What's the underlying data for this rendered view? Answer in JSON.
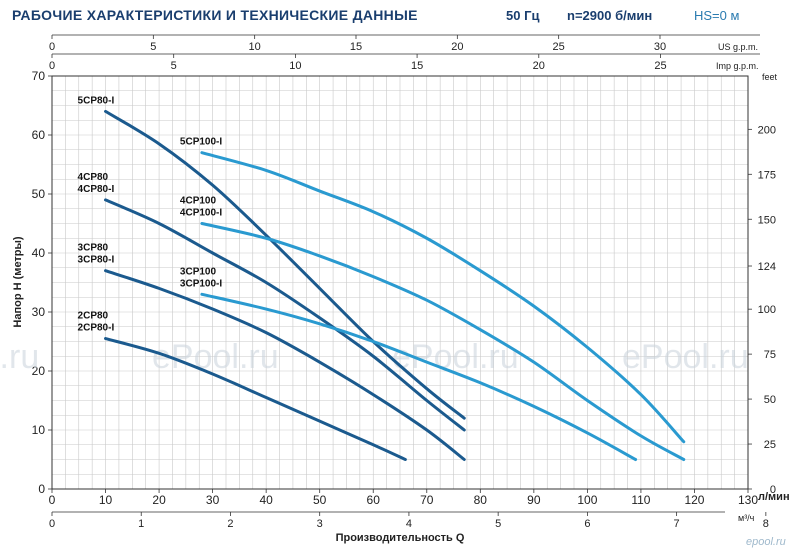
{
  "header": {
    "title": "РАБОЧИЕ ХАРАКТЕРИСТИКИ И ТЕХНИЧЕСКИЕ ДАННЫЕ",
    "frequency": "50 Гц",
    "speed": "n=2900 б/мин",
    "hs": "HS=0 м"
  },
  "watermark": {
    "texts": [
      "l.ru",
      "ePool.ru",
      "ePool.ru",
      "ePool.ru"
    ],
    "logo": "epool.ru"
  },
  "chart_data": {
    "type": "line",
    "title": "",
    "xlabel": "Производительность Q",
    "ylabel": "Напор Н (метры)",
    "x_unit": "л/мин",
    "xlim": [
      0,
      130
    ],
    "ylim": [
      0,
      70
    ],
    "x_ticks": [
      0,
      10,
      20,
      30,
      40,
      50,
      60,
      70,
      80,
      90,
      100,
      110,
      120,
      130
    ],
    "y_ticks": [
      0,
      10,
      20,
      30,
      40,
      50,
      60,
      70
    ],
    "grid": true,
    "secondary_axes": {
      "us_gpm": {
        "label": "US g.p.m.",
        "ticks": [
          0,
          5,
          10,
          15,
          20,
          25,
          30
        ]
      },
      "imp_gpm": {
        "label": "Imp g.p.m.",
        "ticks": [
          0,
          5,
          10,
          15,
          20,
          25
        ]
      },
      "feet": {
        "label": "feet",
        "ticks": [
          0,
          25,
          50,
          75,
          100,
          124,
          150,
          175,
          200
        ]
      },
      "m3h": {
        "label": "м³/ч",
        "ticks": [
          0,
          1,
          2,
          3,
          4,
          5,
          6,
          7,
          8
        ]
      }
    },
    "series": [
      {
        "name": "5CP80-I",
        "label_lines": [
          "5CP80-I"
        ],
        "color": "#1b5a8e",
        "points": [
          [
            10,
            64
          ],
          [
            20,
            58.5
          ],
          [
            30,
            51.5
          ],
          [
            40,
            43
          ],
          [
            50,
            34
          ],
          [
            60,
            25
          ],
          [
            70,
            17
          ],
          [
            77,
            12
          ]
        ]
      },
      {
        "name": "4CP80 / 4CP80-I",
        "label_lines": [
          "4CP80",
          "4CP80-I"
        ],
        "color": "#1b5a8e",
        "points": [
          [
            10,
            49
          ],
          [
            20,
            45
          ],
          [
            30,
            40
          ],
          [
            40,
            35
          ],
          [
            50,
            29
          ],
          [
            60,
            22.5
          ],
          [
            70,
            15
          ],
          [
            77,
            10
          ]
        ]
      },
      {
        "name": "3CP80 / 3CP80-I",
        "label_lines": [
          "3CP80",
          "3CP80-I"
        ],
        "color": "#1b5a8e",
        "points": [
          [
            10,
            37
          ],
          [
            20,
            34
          ],
          [
            30,
            30.5
          ],
          [
            40,
            26.5
          ],
          [
            50,
            21.5
          ],
          [
            60,
            16
          ],
          [
            70,
            10
          ],
          [
            77,
            5
          ]
        ]
      },
      {
        "name": "2CP80 / 2CP80-I",
        "label_lines": [
          "2CP80",
          "2CP80-I"
        ],
        "color": "#1b5a8e",
        "points": [
          [
            10,
            25.5
          ],
          [
            20,
            23
          ],
          [
            30,
            19.5
          ],
          [
            40,
            15.5
          ],
          [
            50,
            11.5
          ],
          [
            60,
            7.5
          ],
          [
            66,
            5
          ]
        ]
      },
      {
        "name": "5CP100-I",
        "label_lines": [
          "5CP100-I"
        ],
        "color": "#2a9ad0",
        "points": [
          [
            28,
            57
          ],
          [
            40,
            54
          ],
          [
            50,
            50.5
          ],
          [
            60,
            47
          ],
          [
            70,
            42.5
          ],
          [
            80,
            37
          ],
          [
            90,
            31
          ],
          [
            100,
            24
          ],
          [
            110,
            16
          ],
          [
            118,
            8
          ]
        ]
      },
      {
        "name": "4CP100 / 4CP100-I",
        "label_lines": [
          "4CP100",
          "4CP100-I"
        ],
        "color": "#2a9ad0",
        "points": [
          [
            28,
            45
          ],
          [
            40,
            42.5
          ],
          [
            50,
            39.5
          ],
          [
            60,
            36
          ],
          [
            70,
            32
          ],
          [
            80,
            27
          ],
          [
            90,
            21.5
          ],
          [
            100,
            15
          ],
          [
            110,
            9
          ],
          [
            118,
            5
          ]
        ]
      },
      {
        "name": "3CP100 / 3CP100-I",
        "label_lines": [
          "3CP100",
          "3CP100-I"
        ],
        "color": "#2a9ad0",
        "points": [
          [
            28,
            33
          ],
          [
            40,
            30.5
          ],
          [
            50,
            28
          ],
          [
            60,
            25
          ],
          [
            70,
            21.5
          ],
          [
            80,
            18
          ],
          [
            90,
            14
          ],
          [
            100,
            9.5
          ],
          [
            109,
            5
          ]
        ]
      }
    ]
  }
}
